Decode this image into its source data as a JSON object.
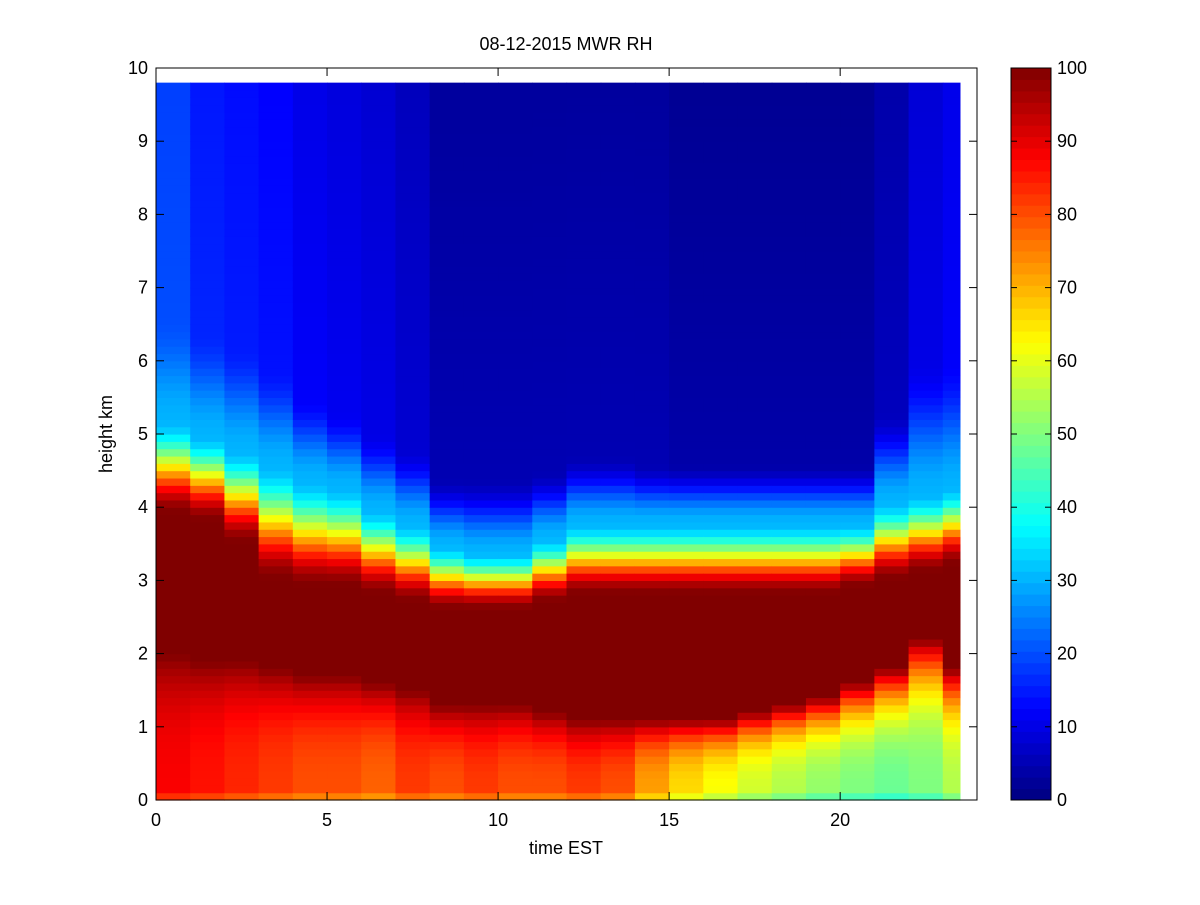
{
  "chart_data": {
    "type": "heatmap",
    "title": "08-12-2015 MWR RH",
    "xlabel": "time EST",
    "ylabel": "height km",
    "xlim": [
      0,
      24
    ],
    "ylim": [
      0,
      10
    ],
    "xticks": [
      0,
      5,
      10,
      15,
      20
    ],
    "yticks": [
      0,
      1,
      2,
      3,
      4,
      5,
      6,
      7,
      8,
      9,
      10
    ],
    "colormap": "jet",
    "colorbar": {
      "range": [
        0,
        100
      ],
      "ticks": [
        0,
        10,
        20,
        30,
        40,
        50,
        60,
        70,
        80,
        90,
        100
      ]
    },
    "data_extent": {
      "time": [
        0,
        23.5
      ],
      "height_top": 9.75
    },
    "time_step_hours": 1,
    "profiles": [
      {
        "t": 0,
        "h_dry": 6.6,
        "h_grad": 5.2,
        "h_sat_top": 3.9,
        "h_sat_bot": 2.0,
        "rh_dry": 20,
        "rh_sfc": 88
      },
      {
        "t": 1,
        "h_dry": 6.4,
        "h_grad": 5.0,
        "h_sat_top": 3.8,
        "h_sat_bot": 1.9,
        "rh_dry": 16,
        "rh_sfc": 86
      },
      {
        "t": 2,
        "h_dry": 6.2,
        "h_grad": 4.8,
        "h_sat_top": 3.5,
        "h_sat_bot": 1.9,
        "rh_dry": 15,
        "rh_sfc": 84
      },
      {
        "t": 3,
        "h_dry": 5.9,
        "h_grad": 4.6,
        "h_sat_top": 3.0,
        "h_sat_bot": 1.8,
        "rh_dry": 14,
        "rh_sfc": 82
      },
      {
        "t": 4,
        "h_dry": 5.5,
        "h_grad": 4.4,
        "h_sat_top": 2.9,
        "h_sat_bot": 1.7,
        "rh_dry": 12,
        "rh_sfc": 80
      },
      {
        "t": 5,
        "h_dry": 5.3,
        "h_grad": 4.3,
        "h_sat_top": 2.9,
        "h_sat_bot": 1.7,
        "rh_dry": 11,
        "rh_sfc": 80
      },
      {
        "t": 6,
        "h_dry": 5.0,
        "h_grad": 4.0,
        "h_sat_top": 2.8,
        "h_sat_bot": 1.6,
        "rh_dry": 10,
        "rh_sfc": 78
      },
      {
        "t": 7,
        "h_dry": 4.8,
        "h_grad": 3.8,
        "h_sat_top": 2.7,
        "h_sat_bot": 1.5,
        "rh_dry": 8,
        "rh_sfc": 82
      },
      {
        "t": 8,
        "h_dry": 4.4,
        "h_grad": 3.5,
        "h_sat_top": 2.6,
        "h_sat_bot": 1.3,
        "rh_dry": 5,
        "rh_sfc": 80
      },
      {
        "t": 9,
        "h_dry": 4.4,
        "h_grad": 3.4,
        "h_sat_top": 2.6,
        "h_sat_bot": 1.3,
        "rh_dry": 5,
        "rh_sfc": 82
      },
      {
        "t": 10,
        "h_dry": 4.4,
        "h_grad": 3.4,
        "h_sat_top": 2.6,
        "h_sat_bot": 1.3,
        "rh_dry": 5,
        "rh_sfc": 80
      },
      {
        "t": 11,
        "h_dry": 4.5,
        "h_grad": 3.6,
        "h_sat_top": 2.7,
        "h_sat_bot": 1.2,
        "rh_dry": 5,
        "rh_sfc": 80
      },
      {
        "t": 12,
        "h_dry": 4.7,
        "h_grad": 3.8,
        "h_sat_top": 2.8,
        "h_sat_bot": 1.1,
        "rh_dry": 5,
        "rh_sfc": 82
      },
      {
        "t": 13,
        "h_dry": 4.7,
        "h_grad": 3.8,
        "h_sat_top": 2.8,
        "h_sat_bot": 1.1,
        "rh_dry": 5,
        "rh_sfc": 80
      },
      {
        "t": 14,
        "h_dry": 4.6,
        "h_grad": 3.8,
        "h_sat_top": 2.8,
        "h_sat_bot": 1.1,
        "rh_dry": 5,
        "rh_sfc": 72
      },
      {
        "t": 15,
        "h_dry": 4.6,
        "h_grad": 3.8,
        "h_sat_top": 2.8,
        "h_sat_bot": 1.1,
        "rh_dry": 4,
        "rh_sfc": 66
      },
      {
        "t": 16,
        "h_dry": 4.6,
        "h_grad": 3.8,
        "h_sat_top": 2.8,
        "h_sat_bot": 1.1,
        "rh_dry": 4,
        "rh_sfc": 62
      },
      {
        "t": 17,
        "h_dry": 4.6,
        "h_grad": 3.8,
        "h_sat_top": 2.8,
        "h_sat_bot": 1.2,
        "rh_dry": 4,
        "rh_sfc": 58
      },
      {
        "t": 18,
        "h_dry": 4.6,
        "h_grad": 3.8,
        "h_sat_top": 2.8,
        "h_sat_bot": 1.3,
        "rh_dry": 4,
        "rh_sfc": 55
      },
      {
        "t": 19,
        "h_dry": 4.6,
        "h_grad": 3.8,
        "h_sat_top": 2.8,
        "h_sat_bot": 1.4,
        "rh_dry": 4,
        "rh_sfc": 52
      },
      {
        "t": 20,
        "h_dry": 4.6,
        "h_grad": 3.8,
        "h_sat_top": 2.9,
        "h_sat_bot": 1.6,
        "rh_dry": 4,
        "rh_sfc": 50
      },
      {
        "t": 21,
        "h_dry": 5.3,
        "h_grad": 4.1,
        "h_sat_top": 3.0,
        "h_sat_bot": 1.8,
        "rh_dry": 6,
        "rh_sfc": 48
      },
      {
        "t": 22,
        "h_dry": 6.0,
        "h_grad": 4.2,
        "h_sat_top": 3.1,
        "h_sat_bot": 2.2,
        "rh_dry": 10,
        "rh_sfc": 50
      },
      {
        "t": 23,
        "h_dry": 6.0,
        "h_grad": 4.3,
        "h_sat_top": 3.2,
        "h_sat_bot": 1.8,
        "rh_dry": 12,
        "rh_sfc": 55
      }
    ]
  }
}
